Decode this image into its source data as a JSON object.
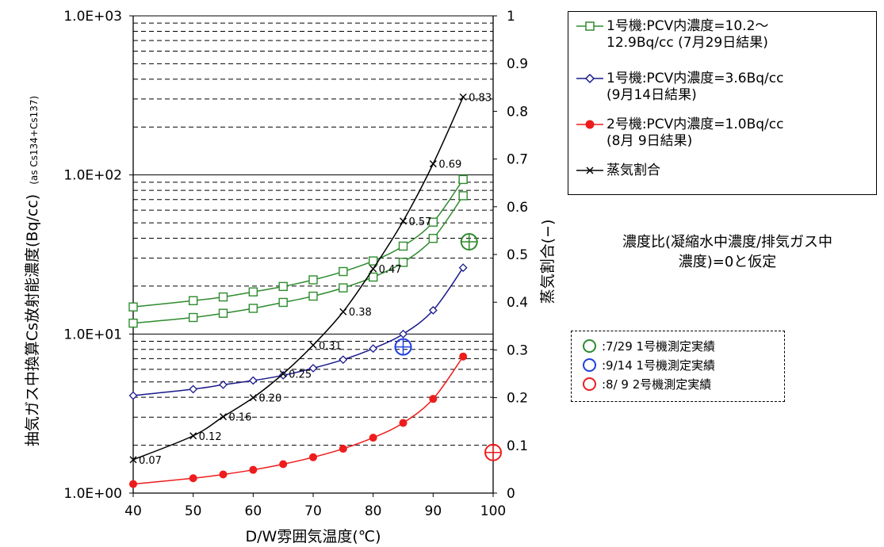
{
  "chart_data": {
    "type": "line",
    "xlabel": "D/W雰囲気温度(℃)",
    "ylabel": "抽気ガス中換算Cs放射能濃度(Bq/cc)",
    "ylabel_sub": "(as Cs134+Cs137)",
    "y2label": "蒸気割合(−)",
    "xlim": [
      40,
      100
    ],
    "x_ticks": [
      "40",
      "50",
      "60",
      "70",
      "80",
      "90",
      "100"
    ],
    "ylim": [
      1,
      1000
    ],
    "y_scale": "log",
    "y_ticks": [
      "1.0E+00",
      "1.0E+01",
      "1.0E+02",
      "1.0E+03"
    ],
    "y2lim": [
      0,
      1
    ],
    "y2_ticks": [
      "0",
      "0.1",
      "0.2",
      "0.3",
      "0.4",
      "0.5",
      "0.6",
      "0.7",
      "0.8",
      "0.9",
      "1"
    ],
    "grid": true,
    "series": [
      {
        "name": "1号機:PCV内濃度=10.2〜\n12.9Bq/cc (7月29日結果)",
        "axis": "left",
        "color": "#2e8b2e",
        "marker": "square",
        "x": [
          40,
          50,
          55,
          60,
          65,
          70,
          75,
          80,
          85,
          90,
          95
        ],
        "values": [
          11.7,
          12.7,
          13.5,
          14.5,
          15.8,
          17.3,
          19.5,
          22.8,
          28.2,
          39.9,
          74.0
        ]
      },
      {
        "name": "",
        "axis": "left",
        "color": "#2e8b2e",
        "marker": "square",
        "x": [
          40,
          50,
          55,
          60,
          65,
          70,
          75,
          80,
          85,
          90,
          95
        ],
        "values": [
          14.8,
          16.2,
          17.1,
          18.4,
          19.9,
          21.9,
          24.7,
          28.8,
          35.7,
          50.5,
          93.6
        ]
      },
      {
        "name": "1号機:PCV内濃度=3.6Bq/cc\n(9月14日結果)",
        "axis": "left",
        "color": "#1a1a8c",
        "marker": "diamond",
        "x": [
          40,
          50,
          55,
          60,
          65,
          70,
          75,
          80,
          85,
          90,
          95
        ],
        "values": [
          4.1,
          4.5,
          4.8,
          5.1,
          5.5,
          6.1,
          6.9,
          8.1,
          10.0,
          14.1,
          26.1
        ]
      },
      {
        "name": "2号機:PCV内濃度=1.0Bq/cc\n(8月 9日結果)",
        "axis": "left",
        "color": "#ee1c1c",
        "marker": "circle",
        "x": [
          40,
          50,
          55,
          60,
          65,
          70,
          75,
          80,
          85,
          90,
          95
        ],
        "values": [
          1.14,
          1.24,
          1.31,
          1.4,
          1.52,
          1.68,
          1.9,
          2.23,
          2.76,
          3.91,
          7.22
        ]
      },
      {
        "name": "蒸気割合",
        "axis": "right",
        "color": "#000000",
        "marker": "x",
        "x": [
          40,
          50,
          55,
          60,
          65,
          70,
          75,
          80,
          85,
          90,
          95
        ],
        "values": [
          0.07,
          0.12,
          0.16,
          0.2,
          0.25,
          0.31,
          0.38,
          0.47,
          0.57,
          0.69,
          0.83
        ],
        "labels": [
          "0.07",
          "0.12",
          "0.16",
          "0.20",
          "0.25",
          "0.31",
          "0.38",
          "0.47",
          "0.57",
          "0.69",
          "0.83"
        ]
      }
    ],
    "actual_points": [
      {
        "label": ":7/29 1号機測定実績",
        "x": 96,
        "y": 38,
        "color": "#2e8b2e"
      },
      {
        "label": ":9/14 1号機測定実績",
        "x": 85,
        "y": 8.3,
        "color": "#2040e0"
      },
      {
        "label": ":8/ 9 2号機測定実績",
        "x": 100,
        "y": 1.8,
        "color": "#ee1c1c"
      }
    ],
    "note": "濃度比(凝縮水中濃度/排気ガス中\n濃度)=0と仮定"
  }
}
